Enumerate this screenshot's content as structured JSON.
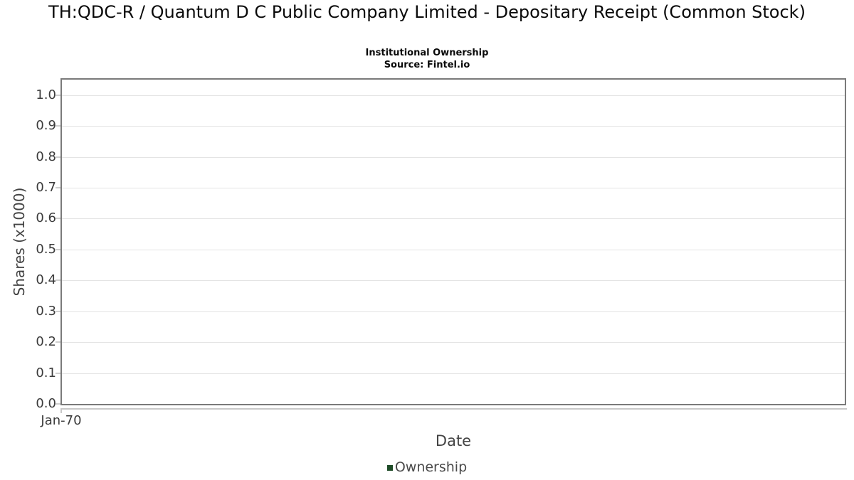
{
  "chart_data": {
    "type": "line",
    "title": "TH:QDC-R / Quantum D C Public Company Limited - Depositary Receipt (Common Stock)",
    "subtitle": "Institutional Ownership",
    "source": "Source: Fintel.io",
    "xlabel": "Date",
    "ylabel": "Shares (x1000)",
    "x_ticks": [
      "Jan-70"
    ],
    "y_ticks": [
      "0.0",
      "0.1",
      "0.2",
      "0.3",
      "0.4",
      "0.5",
      "0.6",
      "0.7",
      "0.8",
      "0.9",
      "1.0"
    ],
    "ylim": [
      0,
      1.05
    ],
    "grid": "horizontal",
    "plot_border": true,
    "legend_position": "bottom",
    "legend": [
      {
        "label": "Ownership",
        "color": "#1e4b27"
      }
    ],
    "series": [
      {
        "name": "Ownership",
        "x": [],
        "values": []
      }
    ]
  },
  "colors": {
    "background": "#ffffff",
    "plot_border": "#7a7a7a",
    "gridline": "#e4e4e4",
    "tick_label": "#3b3b3b",
    "axis_title": "#434343",
    "legend_text": "#4a4a4a",
    "series_ownership": "#1e4b27"
  }
}
